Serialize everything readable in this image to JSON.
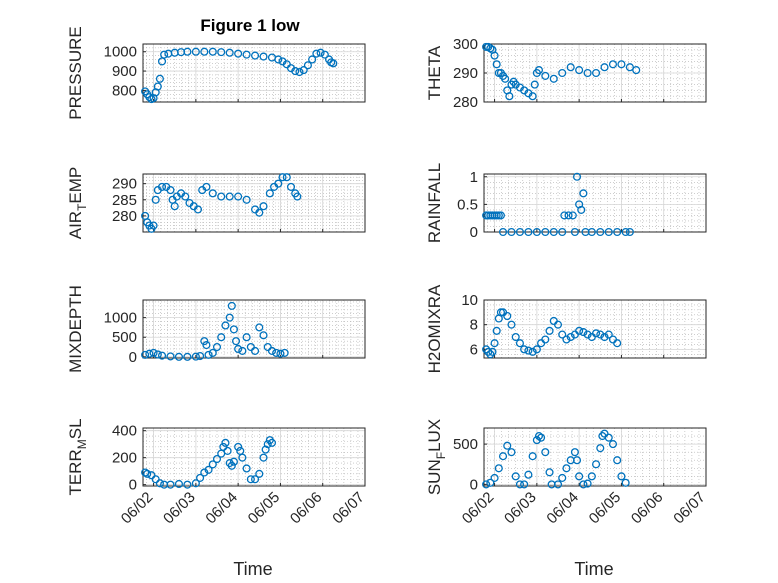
{
  "figure_title": "Figure 1 low",
  "colors": {
    "marker": "#0072BD",
    "axis": "#262626",
    "grid": "#b0b0b0"
  },
  "x_tick_labels": [
    "06/02",
    "06/03",
    "06/04",
    "06/05",
    "06/06",
    "06/07"
  ],
  "chart_data": [
    {
      "type": "scatter",
      "ylabel": "PRESSURE",
      "xlabel": "",
      "yticks": [
        800,
        900,
        1000
      ],
      "ylim": [
        740,
        1040
      ],
      "x_range_days": [
        0.75,
        6.0
      ],
      "grid": true,
      "points": [
        [
          0.8,
          795
        ],
        [
          0.85,
          780
        ],
        [
          0.9,
          765
        ],
        [
          0.95,
          755
        ],
        [
          1.0,
          760
        ],
        [
          1.05,
          790
        ],
        [
          1.1,
          820
        ],
        [
          1.15,
          860
        ],
        [
          1.2,
          950
        ],
        [
          1.25,
          985
        ],
        [
          1.35,
          990
        ],
        [
          1.5,
          995
        ],
        [
          1.65,
          998
        ],
        [
          1.8,
          1000
        ],
        [
          2.0,
          1000
        ],
        [
          2.2,
          1000
        ],
        [
          2.4,
          1000
        ],
        [
          2.6,
          998
        ],
        [
          2.8,
          995
        ],
        [
          3.0,
          990
        ],
        [
          3.2,
          985
        ],
        [
          3.4,
          980
        ],
        [
          3.6,
          975
        ],
        [
          3.8,
          970
        ],
        [
          3.95,
          960
        ],
        [
          4.05,
          950
        ],
        [
          4.15,
          935
        ],
        [
          4.25,
          915
        ],
        [
          4.35,
          900
        ],
        [
          4.45,
          895
        ],
        [
          4.55,
          905
        ],
        [
          4.65,
          930
        ],
        [
          4.75,
          960
        ],
        [
          4.85,
          990
        ],
        [
          4.95,
          995
        ],
        [
          5.05,
          985
        ],
        [
          5.15,
          960
        ],
        [
          5.2,
          945
        ],
        [
          5.25,
          940
        ]
      ]
    },
    {
      "type": "scatter",
      "ylabel": "THETA",
      "xlabel": "",
      "yticks": [
        280,
        290,
        300
      ],
      "ylim": [
        280,
        300
      ],
      "x_range_days": [
        0.75,
        6.0
      ],
      "grid": true,
      "points": [
        [
          0.8,
          299
        ],
        [
          0.85,
          299
        ],
        [
          0.9,
          298.5
        ],
        [
          0.95,
          298
        ],
        [
          1.0,
          296
        ],
        [
          1.05,
          293
        ],
        [
          1.1,
          290
        ],
        [
          1.15,
          290
        ],
        [
          1.2,
          289
        ],
        [
          1.25,
          288
        ],
        [
          1.3,
          284
        ],
        [
          1.35,
          282
        ],
        [
          1.4,
          286
        ],
        [
          1.45,
          287
        ],
        [
          1.5,
          286
        ],
        [
          1.6,
          285
        ],
        [
          1.7,
          284
        ],
        [
          1.8,
          283
        ],
        [
          1.9,
          282
        ],
        [
          1.95,
          286
        ],
        [
          2.0,
          290
        ],
        [
          2.05,
          291
        ],
        [
          2.2,
          289
        ],
        [
          2.4,
          288
        ],
        [
          2.6,
          290
        ],
        [
          2.8,
          292
        ],
        [
          3.0,
          291
        ],
        [
          3.2,
          290
        ],
        [
          3.4,
          290
        ],
        [
          3.6,
          292
        ],
        [
          3.8,
          293
        ],
        [
          4.0,
          293
        ],
        [
          4.2,
          292
        ],
        [
          4.35,
          291
        ]
      ]
    },
    {
      "type": "scatter",
      "ylabel": "AIR_TEMP",
      "ylabel_parts": [
        "AIR",
        "T",
        "EMP"
      ],
      "xlabel": "",
      "yticks": [
        280,
        285,
        290
      ],
      "ylim": [
        275,
        293
      ],
      "x_range_days": [
        0.75,
        6.0
      ],
      "grid": true,
      "points": [
        [
          0.8,
          280
        ],
        [
          0.85,
          278
        ],
        [
          0.9,
          277
        ],
        [
          0.95,
          276
        ],
        [
          1.0,
          277
        ],
        [
          1.05,
          285
        ],
        [
          1.1,
          288
        ],
        [
          1.2,
          289
        ],
        [
          1.3,
          289
        ],
        [
          1.4,
          288
        ],
        [
          1.45,
          285
        ],
        [
          1.5,
          283
        ],
        [
          1.55,
          286
        ],
        [
          1.65,
          287
        ],
        [
          1.75,
          286
        ],
        [
          1.85,
          284
        ],
        [
          1.95,
          283
        ],
        [
          2.05,
          282
        ],
        [
          2.15,
          288
        ],
        [
          2.25,
          289
        ],
        [
          2.4,
          287
        ],
        [
          2.6,
          286
        ],
        [
          2.8,
          286
        ],
        [
          3.0,
          286
        ],
        [
          3.2,
          285
        ],
        [
          3.4,
          282
        ],
        [
          3.5,
          281
        ],
        [
          3.6,
          283
        ],
        [
          3.75,
          287
        ],
        [
          3.85,
          289
        ],
        [
          3.95,
          290
        ],
        [
          4.05,
          292
        ],
        [
          4.15,
          292
        ],
        [
          4.25,
          289
        ],
        [
          4.35,
          287
        ],
        [
          4.4,
          286
        ]
      ]
    },
    {
      "type": "scatter",
      "ylabel": "RAINFALL",
      "xlabel": "",
      "yticks": [
        0,
        0.5,
        1
      ],
      "ylim": [
        0,
        1.05
      ],
      "x_range_days": [
        0.75,
        6.0
      ],
      "grid": true,
      "points": [
        [
          0.8,
          0.3
        ],
        [
          0.85,
          0.3
        ],
        [
          0.9,
          0.3
        ],
        [
          0.95,
          0.3
        ],
        [
          1.0,
          0.3
        ],
        [
          1.05,
          0.3
        ],
        [
          1.1,
          0.3
        ],
        [
          1.15,
          0.3
        ],
        [
          1.2,
          0
        ],
        [
          1.4,
          0
        ],
        [
          1.6,
          0
        ],
        [
          1.8,
          0
        ],
        [
          2.0,
          0
        ],
        [
          2.2,
          0
        ],
        [
          2.4,
          0
        ],
        [
          2.6,
          0
        ],
        [
          2.65,
          0.3
        ],
        [
          2.75,
          0.3
        ],
        [
          2.85,
          0.3
        ],
        [
          2.9,
          0
        ],
        [
          2.95,
          1.0
        ],
        [
          3.0,
          0.5
        ],
        [
          3.05,
          0.4
        ],
        [
          3.1,
          0.7
        ],
        [
          3.15,
          0
        ],
        [
          3.3,
          0
        ],
        [
          3.5,
          0
        ],
        [
          3.7,
          0
        ],
        [
          3.9,
          0
        ],
        [
          4.1,
          0
        ],
        [
          4.2,
          0
        ]
      ]
    },
    {
      "type": "scatter",
      "ylabel": "MIXDEPTH",
      "xlabel": "",
      "yticks": [
        0,
        500,
        1000
      ],
      "ylim": [
        -30,
        1450
      ],
      "x_range_days": [
        0.75,
        6.0
      ],
      "grid": true,
      "points": [
        [
          0.8,
          50
        ],
        [
          0.9,
          80
        ],
        [
          1.0,
          100
        ],
        [
          1.1,
          60
        ],
        [
          1.2,
          30
        ],
        [
          1.4,
          10
        ],
        [
          1.6,
          0
        ],
        [
          1.8,
          0
        ],
        [
          2.0,
          5
        ],
        [
          2.1,
          20
        ],
        [
          2.2,
          400
        ],
        [
          2.25,
          300
        ],
        [
          2.3,
          50
        ],
        [
          2.4,
          100
        ],
        [
          2.5,
          250
        ],
        [
          2.6,
          500
        ],
        [
          2.7,
          800
        ],
        [
          2.8,
          1000
        ],
        [
          2.85,
          1300
        ],
        [
          2.9,
          700
        ],
        [
          2.95,
          400
        ],
        [
          3.0,
          200
        ],
        [
          3.1,
          150
        ],
        [
          3.2,
          500
        ],
        [
          3.3,
          250
        ],
        [
          3.4,
          150
        ],
        [
          3.5,
          750
        ],
        [
          3.6,
          550
        ],
        [
          3.7,
          250
        ],
        [
          3.8,
          150
        ],
        [
          3.9,
          100
        ],
        [
          4.0,
          80
        ],
        [
          4.1,
          100
        ]
      ]
    },
    {
      "type": "scatter",
      "ylabel": "H2OMIXRA",
      "xlabel": "",
      "yticks": [
        6,
        8,
        10
      ],
      "ylim": [
        5.3,
        10
      ],
      "x_range_days": [
        0.75,
        6.0
      ],
      "grid": true,
      "points": [
        [
          0.8,
          6
        ],
        [
          0.85,
          5.8
        ],
        [
          0.9,
          5.6
        ],
        [
          0.95,
          5.8
        ],
        [
          1.0,
          6.5
        ],
        [
          1.05,
          7.5
        ],
        [
          1.1,
          8.5
        ],
        [
          1.15,
          9
        ],
        [
          1.2,
          9
        ],
        [
          1.3,
          8.7
        ],
        [
          1.4,
          8
        ],
        [
          1.5,
          7
        ],
        [
          1.6,
          6.5
        ],
        [
          1.7,
          6
        ],
        [
          1.8,
          5.9
        ],
        [
          1.9,
          5.8
        ],
        [
          2.0,
          6
        ],
        [
          2.1,
          6.5
        ],
        [
          2.2,
          6.8
        ],
        [
          2.3,
          7.5
        ],
        [
          2.4,
          8.3
        ],
        [
          2.5,
          8
        ],
        [
          2.6,
          7.2
        ],
        [
          2.7,
          6.8
        ],
        [
          2.8,
          7
        ],
        [
          2.9,
          7.2
        ],
        [
          3.0,
          7.5
        ],
        [
          3.1,
          7.4
        ],
        [
          3.2,
          7.2
        ],
        [
          3.3,
          7
        ],
        [
          3.4,
          7.3
        ],
        [
          3.5,
          7.2
        ],
        [
          3.6,
          7
        ],
        [
          3.7,
          7.2
        ],
        [
          3.8,
          6.8
        ],
        [
          3.9,
          6.5
        ]
      ]
    },
    {
      "type": "scatter",
      "ylabel": "TERR_MSL",
      "ylabel_parts": [
        "TERR",
        "M",
        "SL"
      ],
      "xlabel": "Time",
      "yticks": [
        0,
        200,
        400
      ],
      "ylim": [
        -10,
        420
      ],
      "x_range_days": [
        0.75,
        6.0
      ],
      "grid": true,
      "points": [
        [
          0.8,
          90
        ],
        [
          0.85,
          80
        ],
        [
          0.95,
          70
        ],
        [
          1.05,
          40
        ],
        [
          1.15,
          10
        ],
        [
          1.25,
          0
        ],
        [
          1.4,
          0
        ],
        [
          1.6,
          5
        ],
        [
          1.8,
          0
        ],
        [
          2.0,
          10
        ],
        [
          2.1,
          50
        ],
        [
          2.2,
          90
        ],
        [
          2.3,
          110
        ],
        [
          2.4,
          150
        ],
        [
          2.5,
          190
        ],
        [
          2.6,
          230
        ],
        [
          2.65,
          280
        ],
        [
          2.7,
          310
        ],
        [
          2.75,
          250
        ],
        [
          2.8,
          160
        ],
        [
          2.85,
          140
        ],
        [
          2.9,
          170
        ],
        [
          3.0,
          280
        ],
        [
          3.05,
          250
        ],
        [
          3.1,
          200
        ],
        [
          3.2,
          120
        ],
        [
          3.3,
          40
        ],
        [
          3.4,
          40
        ],
        [
          3.5,
          80
        ],
        [
          3.6,
          200
        ],
        [
          3.65,
          260
        ],
        [
          3.7,
          300
        ],
        [
          3.75,
          330
        ],
        [
          3.8,
          310
        ]
      ]
    },
    {
      "type": "scatter",
      "ylabel": "SUN_FLUX",
      "ylabel_parts": [
        "SUN",
        "F",
        "LUX"
      ],
      "xlabel": "Time",
      "yticks": [
        0,
        500
      ],
      "ylim": [
        -20,
        700
      ],
      "x_range_days": [
        0.75,
        6.0
      ],
      "grid": true,
      "points": [
        [
          0.8,
          0
        ],
        [
          0.9,
          20
        ],
        [
          1.0,
          80
        ],
        [
          1.1,
          200
        ],
        [
          1.2,
          350
        ],
        [
          1.3,
          480
        ],
        [
          1.4,
          400
        ],
        [
          1.5,
          100
        ],
        [
          1.6,
          0
        ],
        [
          1.7,
          0
        ],
        [
          1.8,
          120
        ],
        [
          1.9,
          350
        ],
        [
          2.0,
          550
        ],
        [
          2.05,
          600
        ],
        [
          2.1,
          580
        ],
        [
          2.2,
          400
        ],
        [
          2.3,
          150
        ],
        [
          2.35,
          0
        ],
        [
          2.5,
          0
        ],
        [
          2.6,
          80
        ],
        [
          2.7,
          200
        ],
        [
          2.8,
          300
        ],
        [
          2.9,
          400
        ],
        [
          2.95,
          300
        ],
        [
          3.0,
          100
        ],
        [
          3.1,
          0
        ],
        [
          3.2,
          10
        ],
        [
          3.3,
          100
        ],
        [
          3.4,
          250
        ],
        [
          3.5,
          450
        ],
        [
          3.55,
          600
        ],
        [
          3.6,
          630
        ],
        [
          3.7,
          580
        ],
        [
          3.8,
          500
        ],
        [
          3.9,
          300
        ],
        [
          4.0,
          100
        ],
        [
          4.1,
          20
        ]
      ]
    }
  ]
}
